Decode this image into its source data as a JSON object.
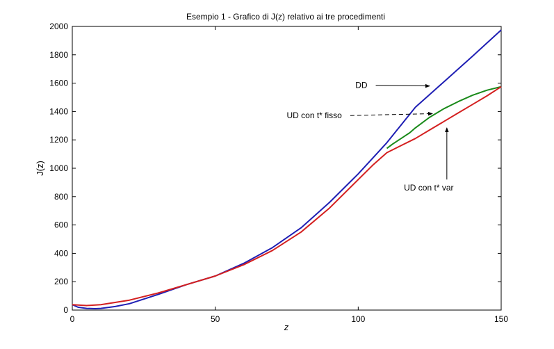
{
  "chart_data": {
    "type": "line",
    "title": "Esempio 1 - Grafico di J(z) relativo ai tre procedimenti",
    "xlabel": "z",
    "ylabel": "J(z)",
    "xlim": [
      0,
      150
    ],
    "ylim": [
      0,
      2000
    ],
    "xticks": [
      0,
      50,
      100,
      150
    ],
    "yticks": [
      0,
      200,
      400,
      600,
      800,
      1000,
      1200,
      1400,
      1600,
      1800,
      2000
    ],
    "grid": false,
    "legend": "none",
    "series": [
      {
        "name": "DD",
        "color": "#1f1fb4",
        "x": [
          0,
          2,
          5,
          8,
          10,
          15,
          20,
          30,
          40,
          50,
          60,
          70,
          80,
          90,
          100,
          110,
          120,
          130,
          140,
          150
        ],
        "y": [
          38,
          20,
          12,
          10,
          12,
          25,
          45,
          110,
          180,
          240,
          330,
          440,
          580,
          760,
          960,
          1180,
          1430,
          1610,
          1790,
          1975
        ]
      },
      {
        "name": "UD con t* fisso",
        "color": "#1a8a1a",
        "x": [
          110,
          112,
          115,
          118,
          120,
          125,
          130,
          135,
          140,
          145,
          150
        ],
        "y": [
          1140,
          1170,
          1210,
          1250,
          1285,
          1360,
          1420,
          1470,
          1515,
          1550,
          1575
        ]
      },
      {
        "name": "UD con t* var",
        "color": "#d42020",
        "x": [
          0,
          5,
          10,
          20,
          30,
          40,
          50,
          60,
          70,
          80,
          90,
          100,
          105,
          110,
          115,
          120,
          125,
          130,
          135,
          140,
          145,
          150
        ],
        "y": [
          38,
          32,
          38,
          70,
          120,
          180,
          240,
          320,
          420,
          550,
          720,
          920,
          1020,
          1110,
          1160,
          1210,
          1270,
          1330,
          1390,
          1450,
          1510,
          1575
        ]
      }
    ],
    "annotations": [
      {
        "text": "DD",
        "x": 99,
        "y": 1565,
        "arrow_to": [
          125,
          1580
        ]
      },
      {
        "text": "UD con t* fisso",
        "x": 75,
        "y": 1352,
        "arrow_to": [
          126,
          1385
        ]
      },
      {
        "text": "UD con t* var",
        "x": 116,
        "y": 842,
        "arrow_to": [
          131,
          1285
        ]
      }
    ]
  }
}
